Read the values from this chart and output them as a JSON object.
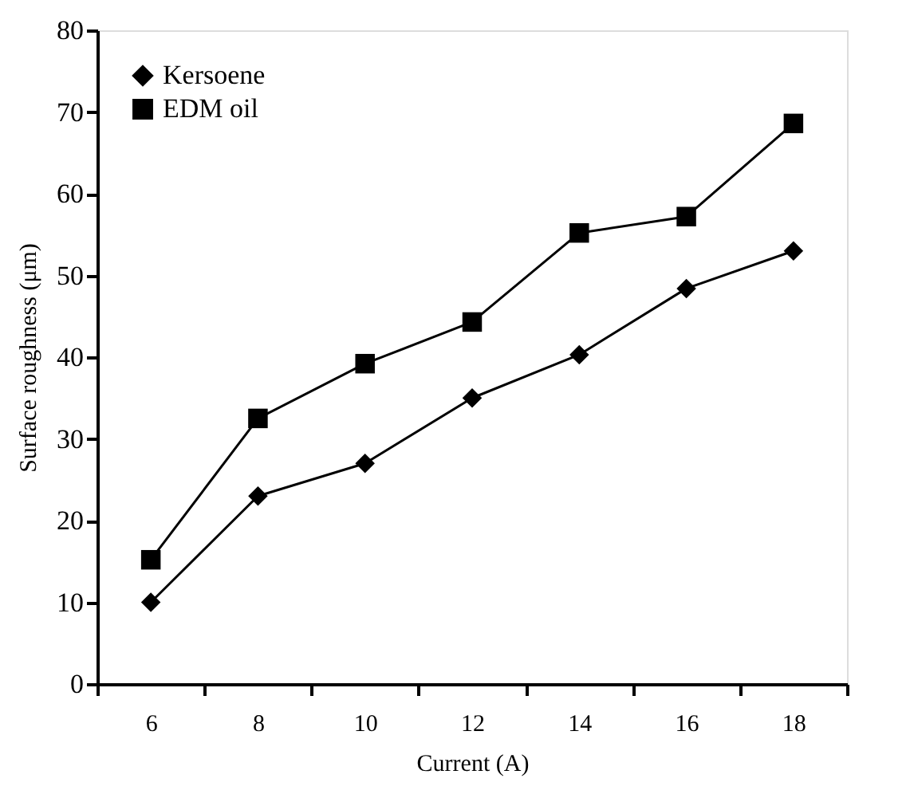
{
  "chart_data": {
    "type": "line",
    "xlabel": "Current (A)",
    "ylabel": "Surface roughness (μm)",
    "categories": [
      "6",
      "8",
      "10",
      "12",
      "14",
      "16",
      "18"
    ],
    "series": [
      {
        "name": "Kersoene",
        "color": "#000000",
        "marker": "diamond",
        "values": [
          10,
          23,
          27,
          35,
          40.3,
          48.4,
          53
        ]
      },
      {
        "name": "EDM oil",
        "color": "#000000",
        "marker": "square",
        "values": [
          15.2,
          32.5,
          39.2,
          44.3,
          55.2,
          57.2,
          68.6
        ]
      }
    ],
    "ylim": [
      0,
      80
    ],
    "yticks": [
      0,
      10,
      20,
      30,
      40,
      50,
      60,
      70,
      80
    ],
    "grid": false,
    "legend": "top left",
    "line_style": "solid"
  }
}
